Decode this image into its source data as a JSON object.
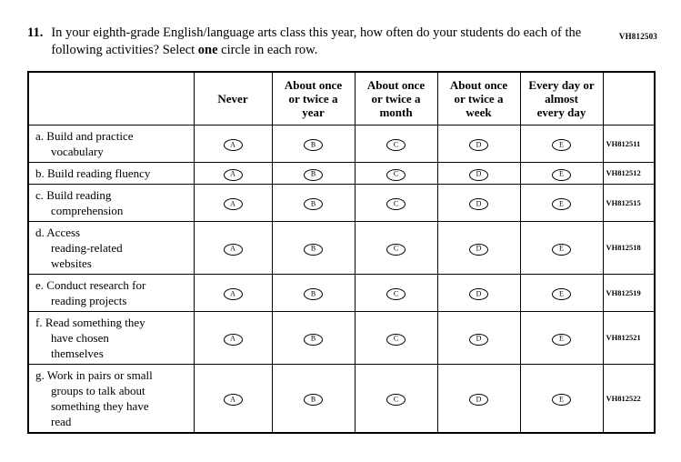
{
  "page": {
    "top_code": "VH812503"
  },
  "question": {
    "number": "11.",
    "text_part1": "In your eighth-grade English/language arts class this year, how often do your students do each of the following activities? Select ",
    "bold_word": "one",
    "text_part2": " circle in each row."
  },
  "table": {
    "columns": [
      "Never",
      "About once\nor twice a\nyear",
      "About once\nor twice a\nmonth",
      "About once\nor twice a\nweek",
      "Every day or\nalmost\nevery day"
    ],
    "option_letters": [
      "A",
      "B",
      "C",
      "D",
      "E"
    ],
    "rows": [
      {
        "label": "a. Build and practice\nvocabulary",
        "code": "VH812511"
      },
      {
        "label": "b. Build reading fluency",
        "code": "VH812512"
      },
      {
        "label": "c. Build reading\ncomprehension",
        "code": "VH812515"
      },
      {
        "label": "d. Access\nreading-related\nwebsites",
        "code": "VH812518"
      },
      {
        "label": "e. Conduct research for\nreading projects",
        "code": "VH812519"
      },
      {
        "label": "f. Read something they\nhave chosen\nthemselves",
        "code": "VH812521"
      },
      {
        "label": "g. Work in pairs or small\ngroups to talk about\nsomething they have\nread",
        "code": "VH812522"
      }
    ]
  }
}
